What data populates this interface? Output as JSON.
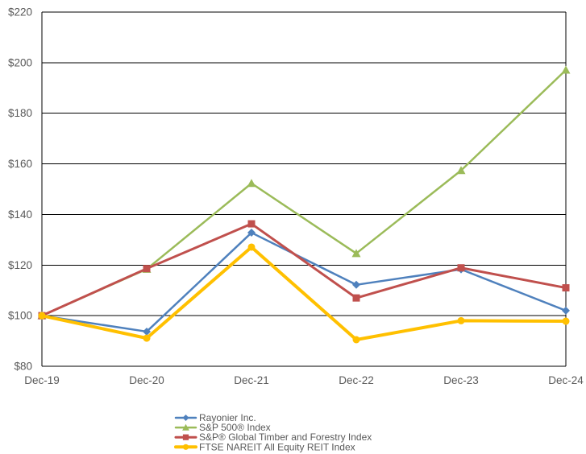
{
  "chart_data": {
    "type": "line",
    "title": "",
    "categories": [
      "Dec-19",
      "Dec-20",
      "Dec-21",
      "Dec-22",
      "Dec-23",
      "Dec-24"
    ],
    "series": [
      {
        "name": "Rayonier Inc.",
        "color": "#4F81BD",
        "marker": "diamond",
        "values": [
          100,
          93.7,
          132.8,
          112.2,
          118.3,
          102.0
        ]
      },
      {
        "name": "S&P 500® Index",
        "color": "#9BBB59",
        "marker": "triangle",
        "values": [
          100,
          118.4,
          152.3,
          124.6,
          157.4,
          197.1
        ]
      },
      {
        "name": "S&P® Global Timber and Forestry Index",
        "color": "#C0504D",
        "marker": "square",
        "values": [
          100,
          118.6,
          136.3,
          107.0,
          118.9,
          111.0
        ]
      },
      {
        "name": "FTSE NAREIT All Equity REIT Index",
        "color": "#FFC000",
        "marker": "circle",
        "values": [
          100,
          91.1,
          127.1,
          90.5,
          98.0,
          97.8
        ]
      }
    ],
    "ylim": [
      80,
      220
    ],
    "y_step": 20,
    "y_tick_labels": [
      "$80",
      "$100",
      "$120",
      "$140",
      "$160",
      "$180",
      "$200",
      "$220"
    ],
    "x_tick_labels": [
      "Dec-19",
      "Dec-20",
      "Dec-21",
      "Dec-22",
      "Dec-23",
      "Dec-24"
    ],
    "grid": true,
    "legend_position": "bottom",
    "axis_line_color": "#000000",
    "tick_label_color": "#595959",
    "background_color": "#ffffff"
  }
}
